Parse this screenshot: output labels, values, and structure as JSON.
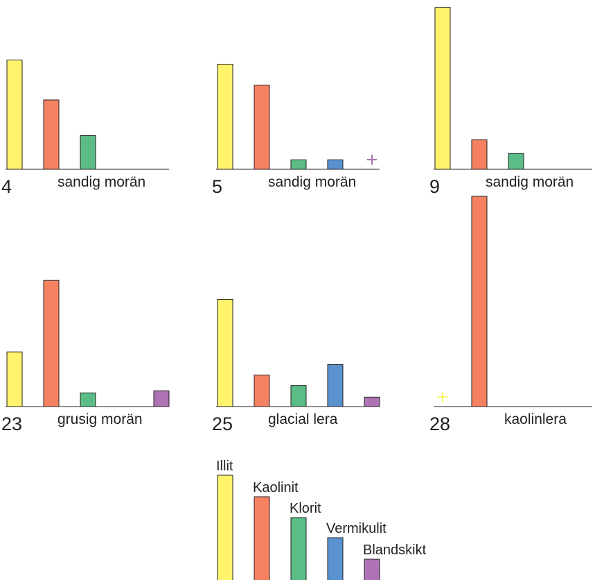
{
  "chart_data": [
    {
      "type": "bar",
      "sample": "4",
      "label": "sandig morän",
      "values": [
        0.52,
        0.33,
        0.16,
        null,
        null
      ],
      "trace": [
        false,
        false,
        false,
        false,
        false
      ]
    },
    {
      "type": "bar",
      "sample": "5",
      "label": "sandig morän",
      "values": [
        0.5,
        0.4,
        0.045,
        0.045,
        null
      ],
      "trace": [
        false,
        false,
        false,
        false,
        true
      ]
    },
    {
      "type": "bar",
      "sample": "9",
      "label": "sandig morän",
      "values": [
        0.77,
        0.14,
        0.075,
        null,
        null
      ],
      "trace": [
        false,
        false,
        false,
        false,
        false
      ]
    },
    {
      "type": "bar",
      "sample": "23",
      "label": "grusig morän",
      "values": [
        0.26,
        0.6,
        0.065,
        null,
        0.075
      ],
      "trace": [
        false,
        false,
        false,
        false,
        false
      ]
    },
    {
      "type": "bar",
      "sample": "25",
      "label": "glacial lera",
      "values": [
        0.51,
        0.15,
        0.1,
        0.2,
        0.045
      ],
      "trace": [
        false,
        false,
        false,
        false,
        false
      ]
    },
    {
      "type": "bar",
      "sample": "28",
      "label": "kaolinlera",
      "values": [
        null,
        1.0,
        null,
        null,
        null
      ],
      "trace": [
        true,
        false,
        false,
        false,
        false
      ]
    }
  ],
  "legend": {
    "items": [
      {
        "name": "Illit",
        "color": "#fff46c"
      },
      {
        "name": "Kaolinit",
        "color": "#f58161"
      },
      {
        "name": "Klorit",
        "color": "#5bbd85"
      },
      {
        "name": "Vermikulit",
        "color": "#5a92cf"
      },
      {
        "name": "Blandskikt",
        "color": "#ae73b4"
      }
    ]
  },
  "trace_symbol": "+"
}
